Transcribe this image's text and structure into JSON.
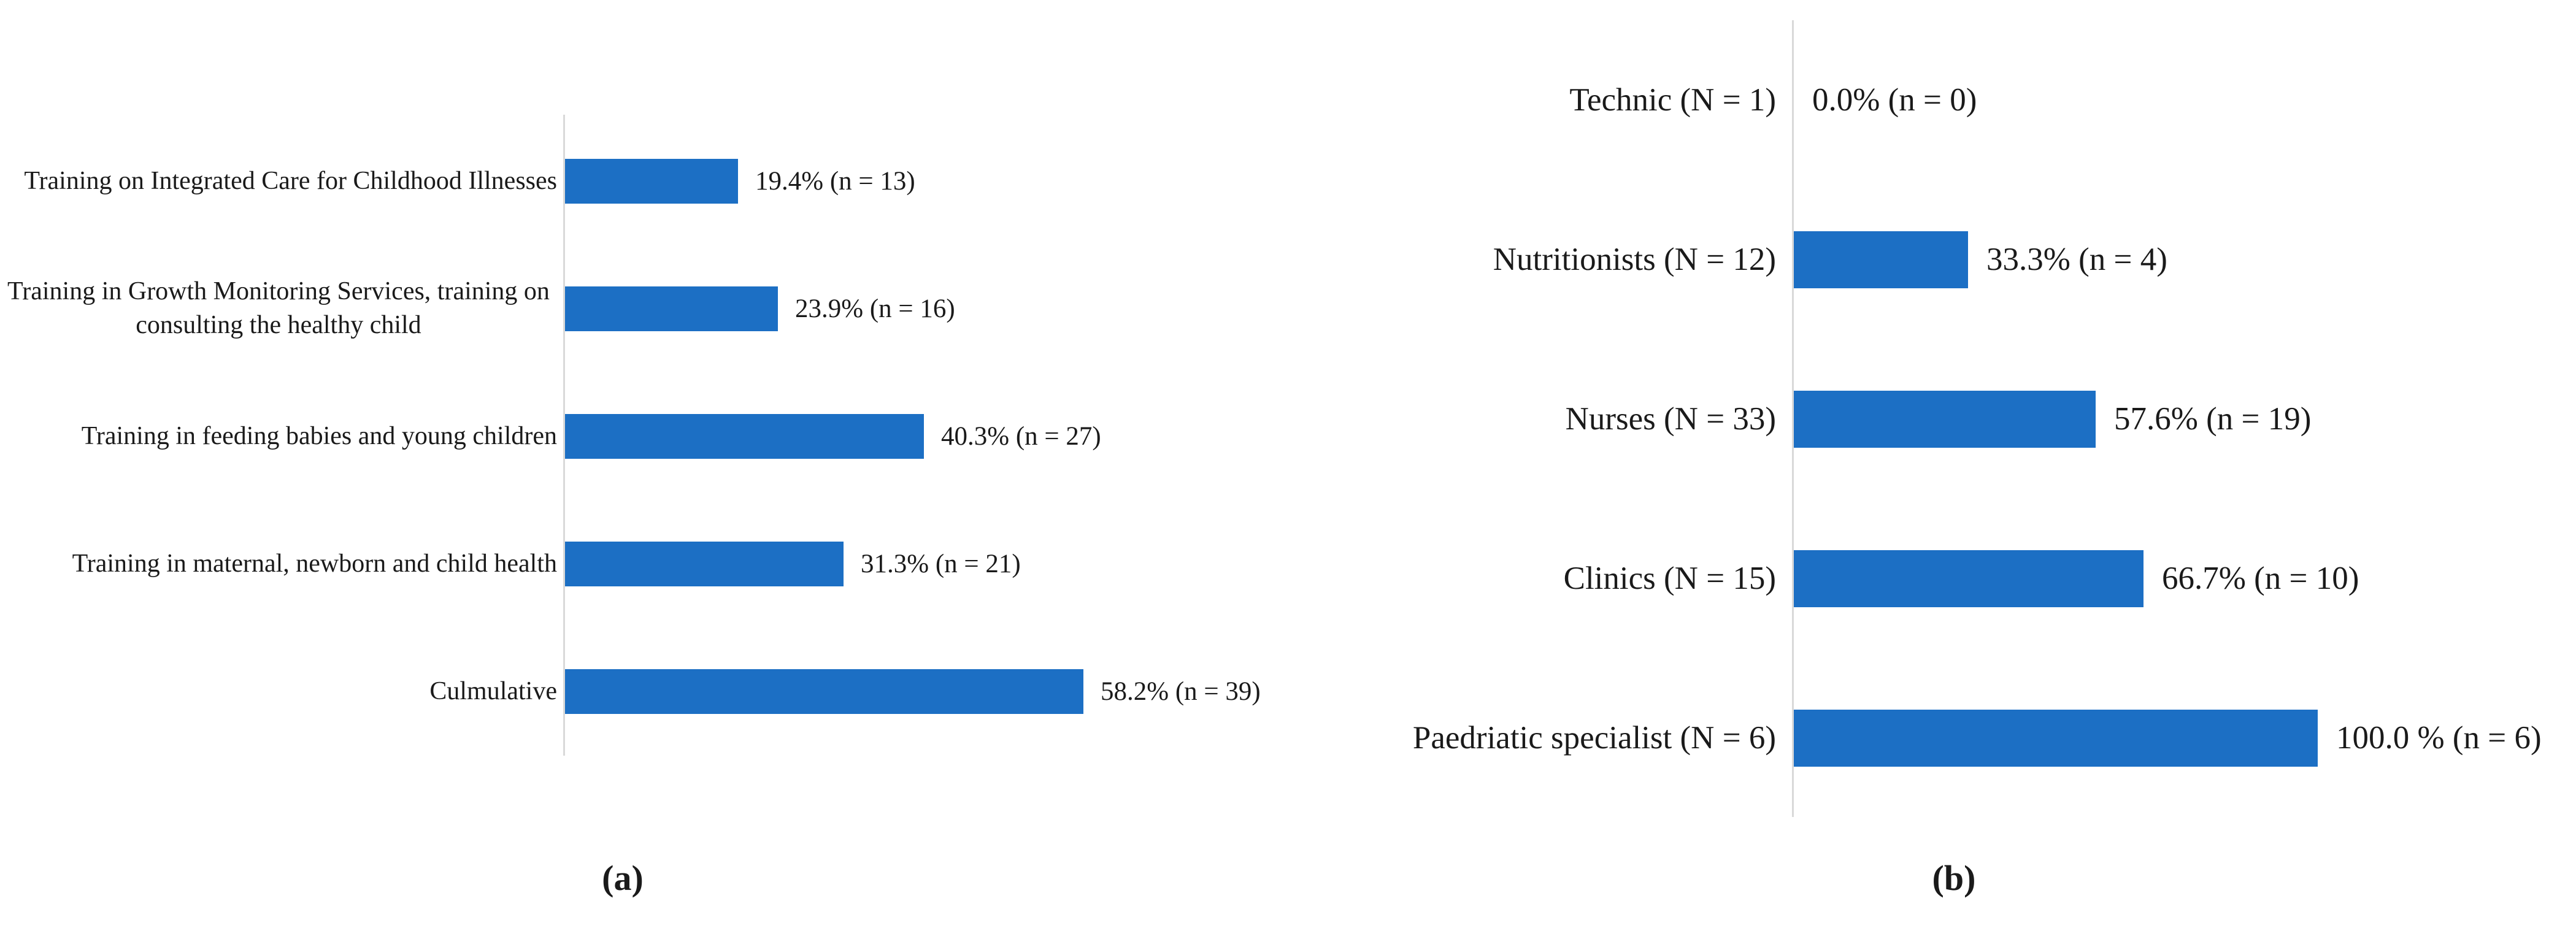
{
  "colors": {
    "bar_blue": "#1c6fc4",
    "axis_line": "#d9d9d9",
    "text": "#1a1a1a"
  },
  "captions": {
    "a": "(a)",
    "b": "(b)"
  },
  "chart_data": [
    {
      "id": "a",
      "type": "bar",
      "orientation": "horizontal",
      "title": "",
      "xlabel": "",
      "ylabel": "",
      "legend": "none",
      "gridlines": false,
      "value_axis_ticks_visible": false,
      "xlim": [
        0,
        65
      ],
      "bar_color": "#1c6fc4",
      "categories": [
        "Training on Integrated Care for Childhood Illnesses",
        "Training in Growth Monitoring Services, training on\nconsulting the healthy child",
        "Training in feeding babies and young children",
        "Training in maternal, newborn and child health",
        "Culmulative"
      ],
      "values": [
        19.4,
        23.9,
        40.3,
        31.3,
        58.2
      ],
      "counts": [
        13,
        16,
        27,
        21,
        39
      ],
      "data_labels": [
        "19.4% (n = 13)",
        "23.9% (n = 16)",
        "40.3% (n = 27)",
        "31.3% (n = 21)",
        "58.2% (n = 39)"
      ]
    },
    {
      "id": "b",
      "type": "bar",
      "orientation": "horizontal",
      "title": "",
      "xlabel": "",
      "ylabel": "",
      "legend": "none",
      "gridlines": false,
      "value_axis_ticks_visible": false,
      "xlim": [
        0,
        100
      ],
      "bar_color": "#1c6fc4",
      "categories": [
        "Technic (N = 1)",
        "Nutritionists (N = 12)",
        "Nurses (N = 33)",
        "Clinics (N = 15)",
        "Paedriatic specialist (N = 6)"
      ],
      "values": [
        0.0,
        33.3,
        57.6,
        66.7,
        100.0
      ],
      "counts": [
        0,
        4,
        19,
        10,
        6
      ],
      "data_labels": [
        "0.0% (n = 0)",
        "33.3% (n = 4)",
        "57.6% (n = 19)",
        "66.7% (n = 10)",
        "100.0 % (n = 6)"
      ]
    }
  ]
}
